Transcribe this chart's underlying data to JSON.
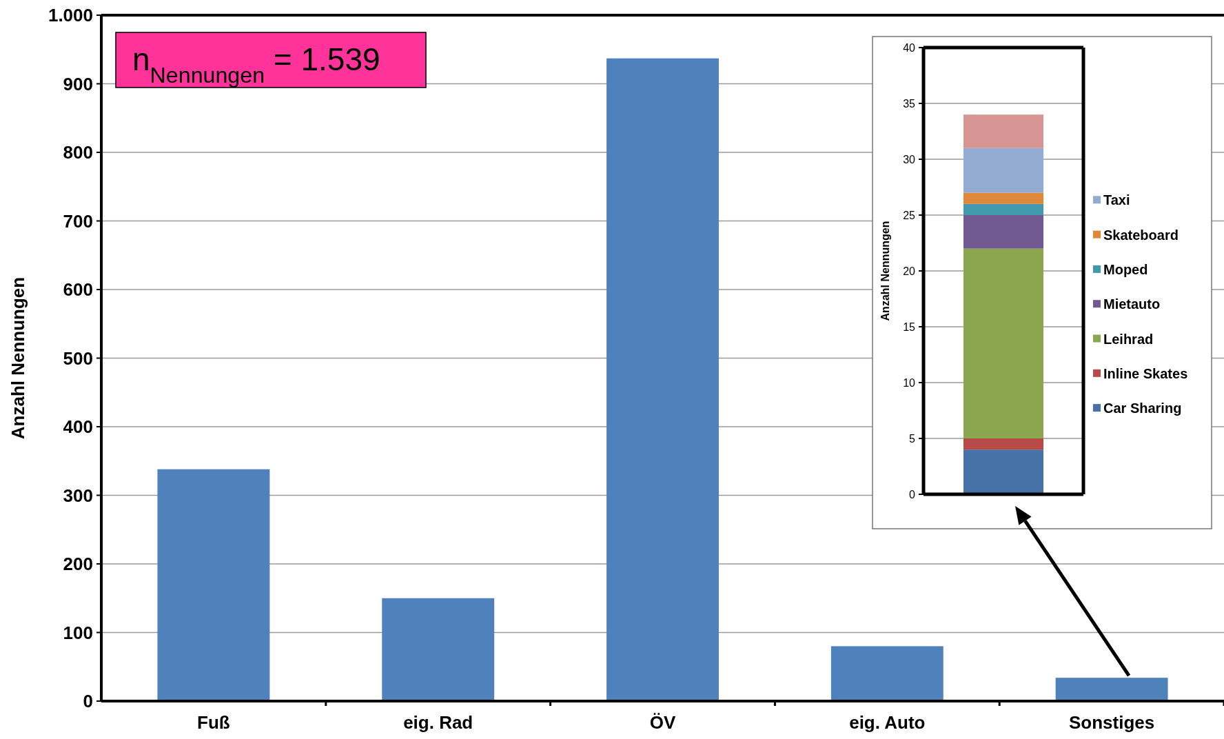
{
  "chart_data": [
    {
      "type": "bar",
      "ylabel": "Anzahl Nennungen",
      "categories": [
        "Fuß",
        "eig. Rad",
        "ÖV",
        "eig. Auto",
        "Sonstiges"
      ],
      "values": [
        338,
        150,
        937,
        80,
        34
      ],
      "color": "#4f81bd",
      "ylim": [
        0,
        1000
      ],
      "yticks": [
        0,
        100,
        200,
        300,
        400,
        500,
        600,
        700,
        800,
        900,
        {
          "value": 1000,
          "label": "1.000"
        }
      ],
      "grid": "y",
      "legend": false,
      "annotations": [
        "n$_{Nennungen}$ = 1.539"
      ]
    },
    {
      "type": "bar",
      "stacked": true,
      "ylabel": "Anzahl Nennungen",
      "categories": [
        null
      ],
      "ylim": [
        0,
        40
      ],
      "yticks": [
        0,
        5,
        10,
        15,
        20,
        25,
        30,
        35,
        40
      ],
      "grid": "y",
      "legend": "right",
      "series": [
        {
          "name": "Car Sharing",
          "color": "#4672a8",
          "values": [
            4
          ]
        },
        {
          "name": "Inline Skates",
          "color": "#b84b48",
          "values": [
            1
          ]
        },
        {
          "name": "Leihrad",
          "color": "#8aa64e",
          "values": [
            17
          ]
        },
        {
          "name": "Mietauto",
          "color": "#715a91",
          "values": [
            3
          ]
        },
        {
          "name": "Moped",
          "color": "#4299ad",
          "values": [
            1
          ]
        },
        {
          "name": "Skateboard",
          "color": "#e0883a",
          "values": [
            1
          ]
        },
        {
          "name": "Taxi",
          "color": "#94abd1",
          "values": [
            4
          ]
        },
        {
          "color": "#d69492",
          "values": [
            3
          ]
        }
      ]
    }
  ]
}
